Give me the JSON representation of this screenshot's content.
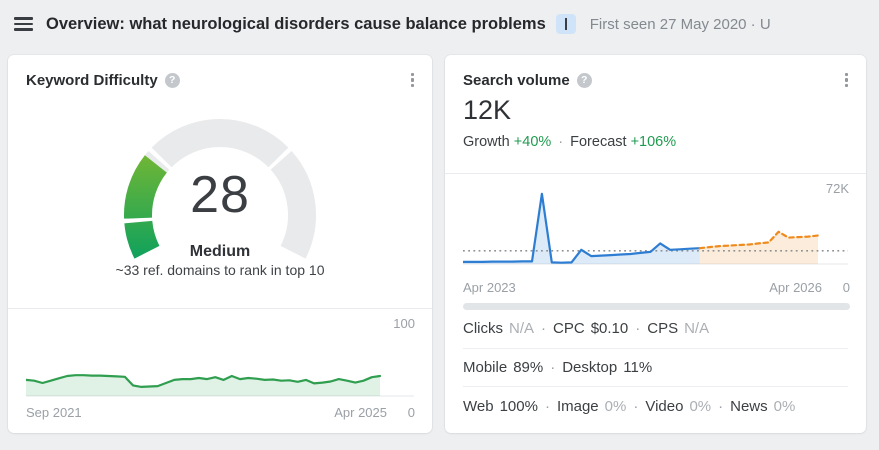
{
  "header": {
    "title": "Overview: what neurological disorders cause balance problems",
    "meta": "First seen 27 May 2020 · U"
  },
  "separator": "·",
  "icons": {
    "menu": "hamburger-menu",
    "help_glyph": "?",
    "more": "kebab-vertical-dots",
    "badge": "text-cursor"
  },
  "kd_card": {
    "title": "Keyword Difficulty",
    "gauge": {
      "value": 28,
      "max": 100,
      "label": "Medium",
      "subtitle": "~33 ref. domains to rank in top 10",
      "thresholds": [
        10,
        30,
        70
      ],
      "track_color": "#e9eaec",
      "fill_gradient": [
        "#09a05f",
        "#8cbc2a"
      ]
    }
  },
  "sv_card": {
    "title": "Search volume",
    "value": "12K",
    "growth_label": "Growth",
    "growth_value": "+40%",
    "forecast_label": "Forecast",
    "forecast_value": "+106%",
    "accent_green": "#1f9b50",
    "stats": [
      [
        {
          "label": "Clicks",
          "value": "N/A",
          "muted": true
        },
        {
          "label": "CPC",
          "value": "$0.10",
          "muted": false
        },
        {
          "label": "CPS",
          "value": "N/A",
          "muted": true
        }
      ],
      [
        {
          "label": "Mobile",
          "value": "89%",
          "muted": false
        },
        {
          "label": "Desktop",
          "value": "11%",
          "muted": false
        }
      ],
      [
        {
          "label": "Web",
          "value": "100%",
          "muted": false
        },
        {
          "label": "Image",
          "value": "0%",
          "muted": true
        },
        {
          "label": "Video",
          "value": "0%",
          "muted": true
        },
        {
          "label": "News",
          "value": "0%",
          "muted": true
        }
      ]
    ]
  },
  "chart_data": [
    {
      "id": "kd-history",
      "type": "area",
      "title": "Keyword Difficulty history",
      "x_start_label": "Sep 2021",
      "x_end_label": "Apr 2025",
      "y_max_label": "100",
      "y_min_label": "0",
      "ylim": [
        0,
        100
      ],
      "grid": false,
      "line_color": "#2f9e4f",
      "fill_color": "rgba(47,158,79,0.15)",
      "values": [
        20,
        19,
        16,
        19,
        22,
        25,
        26,
        26,
        25.5,
        25.5,
        25,
        24.5,
        24,
        13,
        11,
        11.5,
        12,
        16,
        20,
        21,
        21,
        22.5,
        21,
        23.5,
        20,
        25,
        21,
        22.5,
        21.5,
        20,
        20.5,
        19,
        19.5,
        17.5,
        20,
        15.5,
        16.5,
        18,
        21,
        19,
        16.5,
        19,
        23.5,
        25
      ]
    },
    {
      "id": "search-volume-trend",
      "type": "area",
      "title": "Search volume history and forecast",
      "x_start_label": "Apr 2023",
      "x_end_label": "Apr 2026",
      "y_max_label": "72K",
      "y_min_label": "0",
      "ylim": [
        0,
        72000
      ],
      "grid": false,
      "reference_line": 12000,
      "x_points": 37,
      "series": [
        {
          "name": "History",
          "style": "solid",
          "color": "#2d7dd2",
          "fill": "rgba(45,125,210,0.16)",
          "start_index": 0,
          "values": [
            1500,
            1500,
            1500,
            1800,
            1800,
            1800,
            2000,
            2000,
            66000,
            1000,
            800,
            1000,
            13000,
            7000,
            7500,
            8000,
            8500,
            9000,
            10000,
            11000,
            19000,
            13000,
            13500,
            14000,
            14500
          ]
        },
        {
          "name": "Forecast",
          "style": "dashed",
          "color": "#ef8b1c",
          "fill": "rgba(239,139,28,0.16)",
          "start_index": 24,
          "values": [
            14500,
            15500,
            16500,
            17000,
            17500,
            18000,
            19000,
            20000,
            30000,
            24500,
            25000,
            25500,
            26500
          ]
        }
      ]
    }
  ]
}
